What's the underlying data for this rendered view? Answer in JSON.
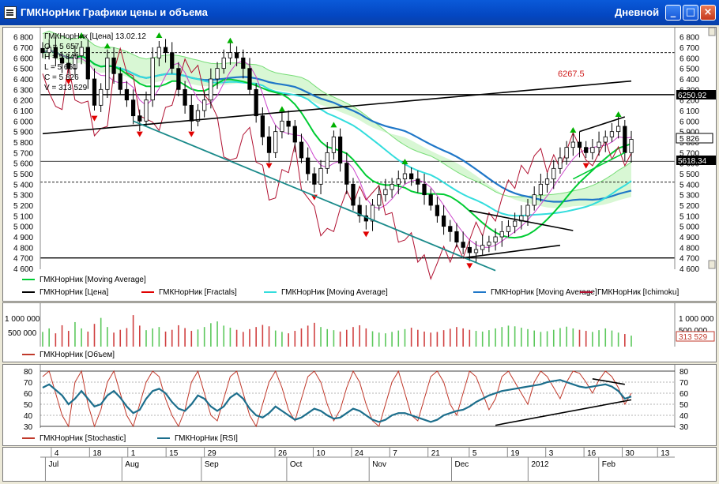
{
  "window": {
    "title": "ГМКНорНик Графики цены и объема",
    "period": "Дневной",
    "buttons": {
      "minimize": "_",
      "maximize": "□",
      "close": "×"
    }
  },
  "colors": {
    "price": "#000000",
    "fractal_up": "#00b000",
    "fractal_down": "#e00000",
    "ma_green": "#00cc33",
    "ma_cyan": "#33dddd",
    "ma_blue": "#1f77c8",
    "ichimoku": "#b01030",
    "stoch": "#c0392b",
    "rsi": "#1c6e8c",
    "hline_label_bg": "#000000"
  },
  "price_panel": {
    "info": {
      "header": "ГМКНорНик [Цена] 13.02.12",
      "open": "O = 5 657",
      "high": "H = 5 840",
      "low": "L = 5 661",
      "close": "C = 5 826",
      "volume": "V = 313 529"
    },
    "y_ticks": [
      "6 800",
      "6 700",
      "6 600",
      "6 500",
      "6 400",
      "6 300",
      "6 200",
      "6 100",
      "6 000",
      "5 900",
      "5 800",
      "5 700",
      "5 600",
      "5 500",
      "5 400",
      "5 300",
      "5 200",
      "5 100",
      "5 000",
      "4 900",
      "4 800",
      "4 700",
      "4 600"
    ],
    "right_labels": {
      "last_close": "5 826",
      "hline_upper": "6250.92",
      "hline_mid": "5618.34",
      "annotation": "6267.5"
    },
    "legend": [
      {
        "name": "ГМКНорНик [Moving Average]",
        "color": "#00cc33"
      },
      {
        "name": "ГМКНорНик [Цена]",
        "color": "#000000"
      },
      {
        "name": "ГМКНорНик [Fractals]",
        "color": "#e00000"
      },
      {
        "name": "ГМКНорНик [Moving Average]",
        "color": "#33dddd"
      },
      {
        "name": "ГМКНорНик [Moving Average]",
        "color": "#1f77c8"
      },
      {
        "name": "ГМКНорНик [Ichimoku]",
        "color": "#b01030"
      }
    ]
  },
  "volume_panel": {
    "left_ticks": [
      "1 000 000",
      "500 000"
    ],
    "right_ticks": [
      "1 000 000",
      "500 000"
    ],
    "last_volume": "313 529",
    "legend": [
      {
        "name": "ГМКНорНик [Объем]",
        "color": "#c0392b"
      }
    ]
  },
  "osc_panel": {
    "y_ticks": [
      "80",
      "70",
      "60",
      "50",
      "40",
      "30"
    ],
    "legend": [
      {
        "name": "ГМКНорНик [Stochastic]",
        "color": "#c0392b"
      },
      {
        "name": "ГМКНорНик [RSI]",
        "color": "#1c6e8c"
      }
    ]
  },
  "x_axis": {
    "days": [
      "4",
      "18",
      "1",
      "15",
      "29",
      "26",
      "10",
      "24",
      "7",
      "21",
      "5",
      "19",
      "3",
      "16",
      "30",
      "13"
    ],
    "months": [
      "Jul",
      "Aug",
      "Sep",
      "Oct",
      "Nov",
      "Dec",
      "2012",
      "Feb"
    ]
  },
  "chart_data": {
    "type": "candlestick",
    "symbol": "ГМКНорНик",
    "timeframe": "Дневной",
    "y_range": [
      4600,
      6850
    ],
    "last_bar": {
      "date": "13.02.12",
      "open": 5657,
      "high": 5840,
      "low": 5661,
      "close": 5826,
      "volume": 313529
    },
    "horizontal_levels": [
      6250.92,
      5618.34
    ],
    "closes": [
      6650,
      6700,
      6600,
      6550,
      6500,
      6620,
      6700,
      6400,
      6150,
      6300,
      6600,
      6450,
      6300,
      6200,
      6050,
      6000,
      6200,
      6600,
      6700,
      6650,
      6500,
      6300,
      6150,
      6000,
      6100,
      6200,
      6400,
      6500,
      6600,
      6650,
      6600,
      6500,
      6300,
      6050,
      5850,
      5700,
      5900,
      6000,
      5950,
      5800,
      5650,
      5500,
      5400,
      5550,
      5700,
      5850,
      5600,
      5400,
      5200,
      5100,
      5050,
      5200,
      5300,
      5350,
      5400,
      5450,
      5500,
      5450,
      5400,
      5300,
      5200,
      5100,
      5000,
      4950,
      4850,
      4800,
      4750,
      4780,
      4820,
      4850,
      4900,
      4950,
      5000,
      5050,
      5100,
      5200,
      5300,
      5400,
      5450,
      5550,
      5650,
      5750,
      5800,
      5750,
      5700,
      5750,
      5800,
      5850,
      5900,
      5950,
      5700,
      5826
    ],
    "volume_bars": [
      420000,
      520000,
      380000,
      610000,
      450000,
      700000,
      520000,
      430000,
      650000,
      820000,
      560000,
      400000,
      480000,
      530000,
      900000,
      600000,
      470000,
      520000,
      560000,
      430000,
      480000,
      610000,
      530000,
      450000,
      490000,
      560000,
      670000,
      720000,
      600000,
      540000,
      480000,
      420000,
      500000,
      560000,
      620000,
      580000,
      460000,
      420000,
      380000,
      450000,
      520000,
      600000,
      680000,
      560000,
      500000,
      470000,
      430000,
      480000,
      560000,
      610000,
      520000,
      440000,
      400000,
      380000,
      420000,
      460000,
      500000,
      540000,
      480000,
      430000,
      400000,
      420000,
      470000,
      510000,
      560000,
      520000,
      480000,
      450000,
      430000,
      470000,
      520000,
      560000,
      600000,
      580000,
      540000,
      500000,
      460000,
      420000,
      440000,
      480000,
      530000,
      570000,
      520000,
      480000,
      450000,
      420000,
      470000,
      520000,
      460000,
      400000,
      360000,
      313529
    ],
    "stochastic": [
      75,
      80,
      60,
      40,
      30,
      70,
      80,
      50,
      30,
      45,
      70,
      80,
      60,
      40,
      30,
      50,
      70,
      80,
      75,
      55,
      40,
      30,
      45,
      70,
      80,
      60,
      40,
      35,
      55,
      75,
      80,
      60,
      40,
      30,
      50,
      70,
      80,
      65,
      45,
      35,
      55,
      75,
      80,
      70,
      50,
      35,
      45,
      65,
      80,
      70,
      50,
      35,
      30,
      50,
      70,
      80,
      60,
      40,
      35,
      55,
      75,
      80,
      70,
      50,
      40,
      60,
      80,
      75,
      60,
      45,
      55,
      75,
      80,
      70,
      60,
      50,
      70,
      80,
      75,
      65,
      55,
      70,
      80,
      78,
      70,
      60,
      72,
      80,
      75,
      65,
      50,
      60
    ],
    "rsi": [
      65,
      68,
      63,
      58,
      50,
      55,
      62,
      55,
      48,
      50,
      58,
      62,
      56,
      48,
      42,
      45,
      55,
      62,
      64,
      60,
      52,
      46,
      44,
      50,
      58,
      55,
      48,
      44,
      48,
      56,
      60,
      55,
      46,
      40,
      38,
      42,
      48,
      44,
      40,
      36,
      38,
      42,
      46,
      44,
      40,
      37,
      38,
      42,
      46,
      44,
      40,
      36,
      34,
      36,
      40,
      42,
      42,
      40,
      38,
      36,
      34,
      36,
      40,
      42,
      44,
      45,
      48,
      52,
      55,
      58,
      60,
      62,
      63,
      64,
      65,
      66,
      67,
      68,
      70,
      71,
      72,
      70,
      68,
      66,
      65,
      66,
      67,
      68,
      66,
      62,
      55,
      57
    ]
  }
}
